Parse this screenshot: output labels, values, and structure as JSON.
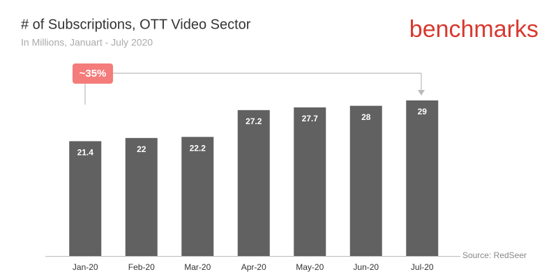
{
  "chart_data": {
    "type": "bar",
    "title": "# of Subscriptions, OTT Video Sector",
    "subtitle": "In Millions, Januart - July 2020",
    "brand": "benchmarks",
    "source": "Source: RedSeer",
    "annotation": "~35%",
    "categories": [
      "Jan-20",
      "Feb-20",
      "Mar-20",
      "Apr-20",
      "May-20",
      "Jun-20",
      "Jul-20"
    ],
    "values": [
      21.4,
      22,
      22.2,
      27.2,
      27.7,
      28,
      29
    ],
    "color": "#616161"
  }
}
